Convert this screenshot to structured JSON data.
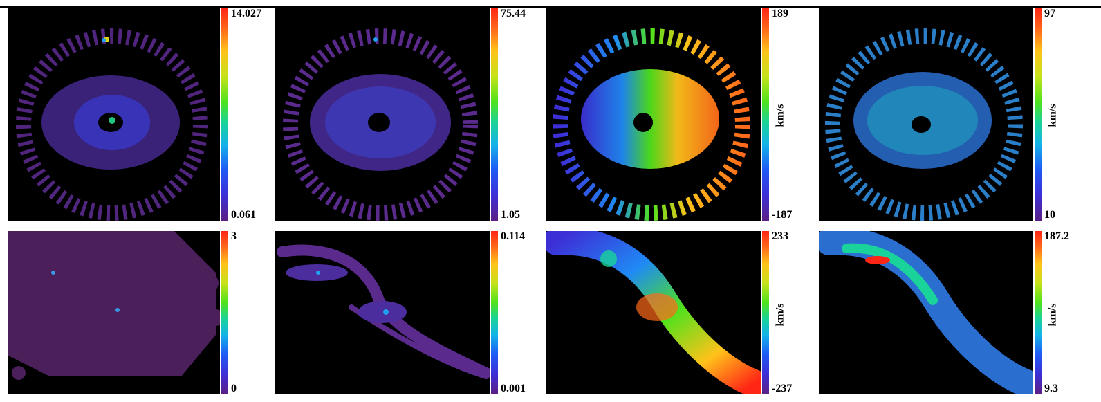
{
  "panels": [
    {
      "id": "r1c1",
      "colorbar": {
        "max": "14.027",
        "min": "0.061",
        "unit": ""
      }
    },
    {
      "id": "r1c2",
      "colorbar": {
        "max": "75.44",
        "min": "1.05",
        "unit": ""
      }
    },
    {
      "id": "r1c3",
      "colorbar": {
        "max": "189",
        "min": "-187",
        "unit": "km/s"
      }
    },
    {
      "id": "r1c4",
      "colorbar": {
        "max": "97",
        "min": "10",
        "unit": "km/s"
      }
    },
    {
      "id": "r2c1",
      "colorbar": {
        "max": "3",
        "min": "0",
        "unit": ""
      }
    },
    {
      "id": "r2c2",
      "colorbar": {
        "max": "0.114",
        "min": "0.001",
        "unit": ""
      }
    },
    {
      "id": "r2c3",
      "colorbar": {
        "max": "233",
        "min": "-237",
        "unit": "km/s"
      }
    },
    {
      "id": "r2c4",
      "colorbar": {
        "max": "187.2",
        "min": "9.3",
        "unit": "km/s"
      }
    }
  ],
  "colors": {
    "background": "#000000",
    "low": "#5a1f86",
    "high": "#ff2616"
  }
}
